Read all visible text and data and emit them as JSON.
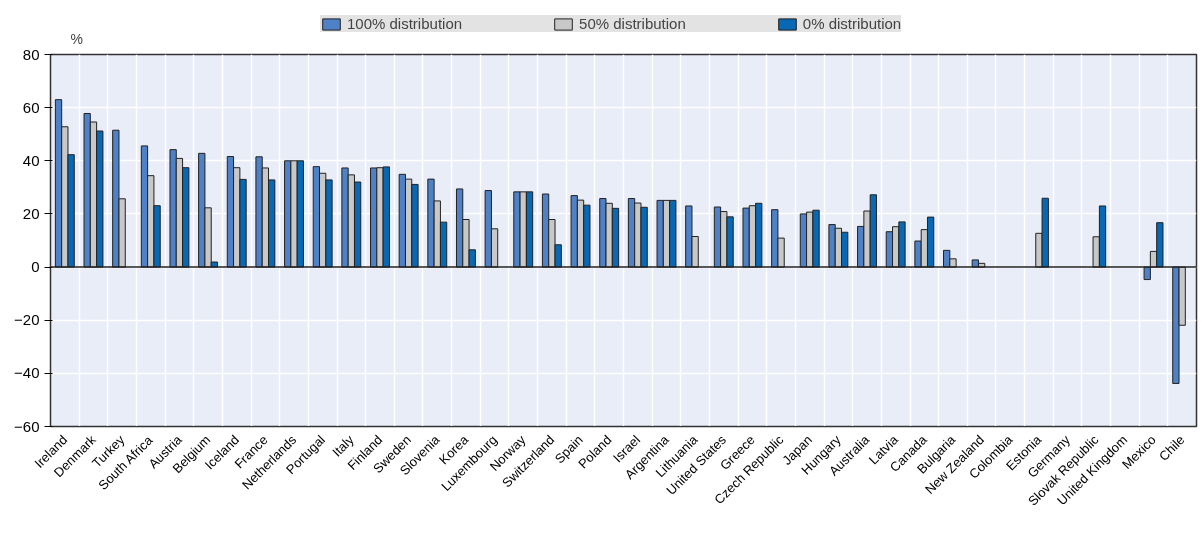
{
  "chart_data": {
    "type": "bar",
    "ylabel": "%",
    "categories": [
      "Ireland",
      "Denmark",
      "Turkey",
      "South Africa",
      "Austria",
      "Belgium",
      "Iceland",
      "France",
      "Netherlands",
      "Portugal",
      "Italy",
      "Finland",
      "Sweden",
      "Slovenia",
      "Korea",
      "Luxembourg",
      "Norway",
      "Switzerland",
      "Spain",
      "Poland",
      "Israel",
      "Argentina",
      "Lithuania",
      "United States",
      "Greece",
      "Czech Republic",
      "Japan",
      "Hungary",
      "Australia",
      "Latvia",
      "Canada",
      "Bulgaria",
      "New Zealand",
      "Colombia",
      "Estonia",
      "Germany",
      "Slovak Republic",
      "United Kingdom",
      "Mexico",
      "Chile"
    ],
    "series": [
      {
        "name": "100% distribution",
        "color": "#4f81c6",
        "values": [
          63,
          57.8,
          51.5,
          45.6,
          44.2,
          42.8,
          41.6,
          41.5,
          40,
          37.8,
          37.3,
          37.3,
          34.9,
          33.1,
          29.4,
          28.8,
          28.3,
          27.5,
          26.9,
          25.8,
          25.8,
          25.1,
          23,
          22.6,
          22.2,
          21.6,
          20,
          16,
          15.3,
          13.3,
          9.8,
          6.3,
          2.7,
          null,
          null,
          null,
          null,
          null,
          -4.7,
          -43.8
        ]
      },
      {
        "name": "50% distribution",
        "color": "#c8c8c8",
        "values": [
          52.8,
          54.6,
          25.7,
          34.4,
          40.9,
          22.3,
          37.4,
          37.3,
          40,
          35.3,
          34.7,
          37.4,
          33.1,
          24.9,
          17.9,
          14.4,
          28.3,
          17.9,
          25.2,
          24,
          24.1,
          25.1,
          11.5,
          20.9,
          23.1,
          10.9,
          20.7,
          14.6,
          21.1,
          15.2,
          14.1,
          3.1,
          1.4,
          null,
          12.7,
          null,
          11.4,
          null,
          5.9,
          -21.9
        ]
      },
      {
        "name": "0% distribution",
        "color": "#0868b4",
        "values": [
          42.3,
          51.2,
          null,
          23.1,
          37.4,
          1.9,
          33,
          32.8,
          40,
          32.8,
          32,
          37.7,
          31.1,
          16.9,
          6.5,
          null,
          28.3,
          8.4,
          23.3,
          22.1,
          22.5,
          25.1,
          null,
          18.9,
          24,
          null,
          21.4,
          13.1,
          27.2,
          17,
          18.8,
          null,
          null,
          null,
          25.9,
          null,
          23,
          null,
          16.7,
          null
        ]
      }
    ],
    "ylim": [
      -60,
      80
    ],
    "yticks": [
      -60,
      -40,
      -20,
      0,
      20,
      40,
      60,
      80
    ],
    "grid": true,
    "legend": "top"
  }
}
